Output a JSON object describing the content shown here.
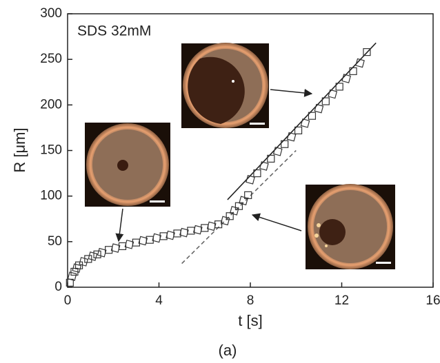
{
  "chart_data": {
    "type": "scatter",
    "annotation": "SDS 32mM",
    "xlabel": "t [s]",
    "ylabel": "R [μm]",
    "caption": "(a)",
    "xlim": [
      0,
      16
    ],
    "xticks": [
      0,
      4,
      8,
      12,
      16
    ],
    "ylim": [
      0,
      300
    ],
    "yticks": [
      0,
      50,
      100,
      150,
      200,
      250,
      300
    ],
    "x": [
      0.1,
      0.2,
      0.3,
      0.4,
      0.5,
      0.7,
      0.9,
      1.1,
      1.3,
      1.5,
      1.8,
      2.1,
      2.4,
      2.7,
      3.0,
      3.3,
      3.6,
      3.9,
      4.2,
      4.5,
      4.8,
      5.1,
      5.4,
      5.7,
      6.0,
      6.3,
      6.6,
      6.9,
      7.1,
      7.3,
      7.5,
      7.7,
      7.9,
      8.0,
      8.3,
      8.6,
      8.9,
      9.2,
      9.5,
      9.8,
      10.1,
      10.4,
      10.7,
      11.0,
      11.3,
      11.6,
      11.9,
      12.2,
      12.5,
      12.8,
      13.1
    ],
    "values": [
      5,
      12,
      17,
      21,
      24,
      28,
      31,
      34,
      36,
      38,
      41,
      43,
      45,
      47,
      49,
      51,
      52,
      54,
      56,
      57,
      59,
      60,
      62,
      63,
      65,
      67,
      69,
      73,
      78,
      84,
      89,
      95,
      101,
      118,
      125,
      133,
      141,
      149,
      157,
      165,
      172,
      180,
      188,
      196,
      204,
      212,
      220,
      229,
      237,
      246,
      258
    ],
    "marker_color": "#333333",
    "lines": [
      {
        "style": "solid",
        "color": "#222222",
        "x": [
          7.0,
          13.5
        ],
        "values": [
          96,
          268
        ]
      },
      {
        "style": "dashed",
        "color": "#666666",
        "x": [
          5.0,
          10.0
        ],
        "values": [
          26,
          150
        ]
      }
    ]
  }
}
